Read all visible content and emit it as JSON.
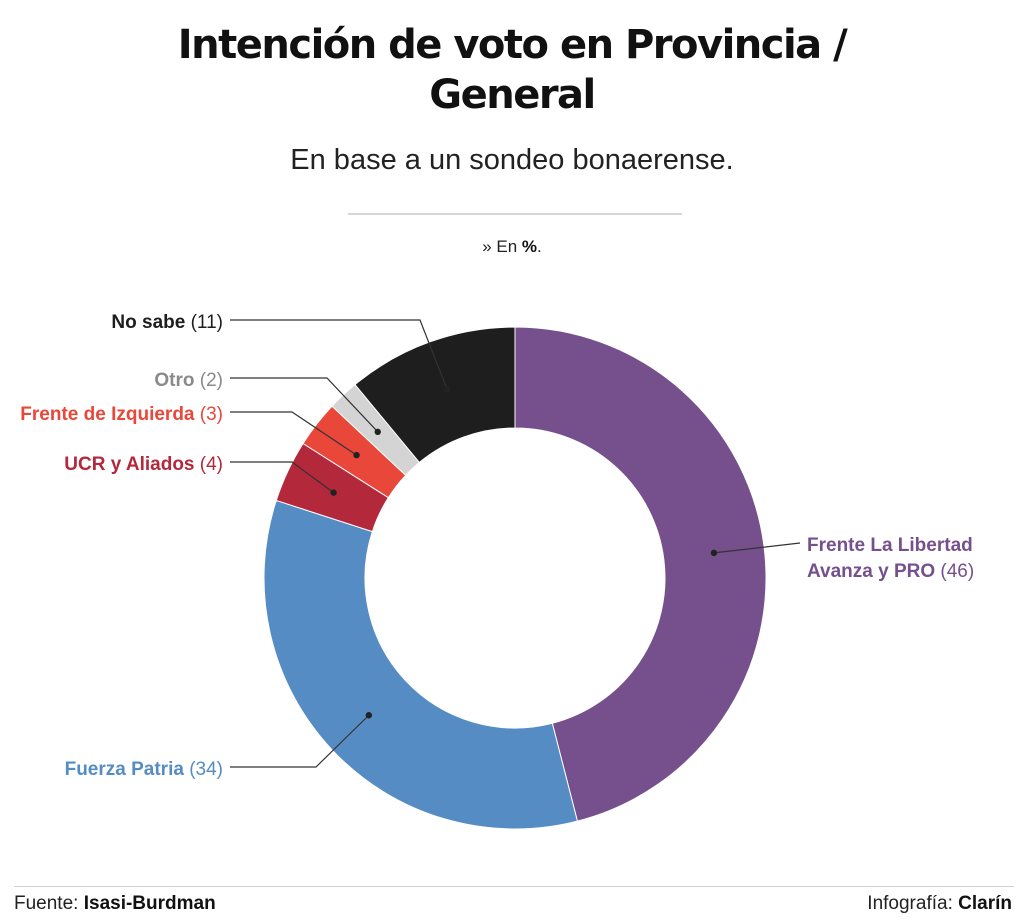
{
  "header": {
    "title_line1": "Intención de voto en Provincia /",
    "title_line2": "General",
    "subtitle": "En base a un sondeo bonaerense.",
    "unit_prefix": "» En ",
    "unit_symbol": "%",
    "unit_suffix": "."
  },
  "chart_data": {
    "type": "pie",
    "variant": "donut",
    "title": "Intención de voto en Provincia / General",
    "subtitle": "En base a un sondeo bonaerense.",
    "unit": "%",
    "slices": [
      {
        "name": "Frente La Libertad Avanza y PRO",
        "label_line1": "Frente La Libertad",
        "label_line2": "Avanza y PRO",
        "value": 46,
        "value_text": "(46)",
        "color": "#75508c"
      },
      {
        "name": "Fuerza Patria",
        "value": 34,
        "value_text": "(34)",
        "color": "#568cc4"
      },
      {
        "name": "UCR y Aliados",
        "value": 4,
        "value_text": "(4)",
        "color": "#b3283b"
      },
      {
        "name": "Frente de Izquierda",
        "value": 3,
        "value_text": "(3)",
        "color": "#e8473a"
      },
      {
        "name": "Otro",
        "value": 2,
        "value_text": "(2)",
        "color": "#d4d4d4",
        "label_color": "#8a8a8a"
      },
      {
        "name": "No sabe",
        "value": 11,
        "value_text": "(11)",
        "color": "#1e1e1e"
      }
    ]
  },
  "footer": {
    "source_label": "Fuente: ",
    "source_name": "Isasi-Burdman",
    "credit_label": "Infografía: ",
    "credit_name": "Clarín"
  }
}
